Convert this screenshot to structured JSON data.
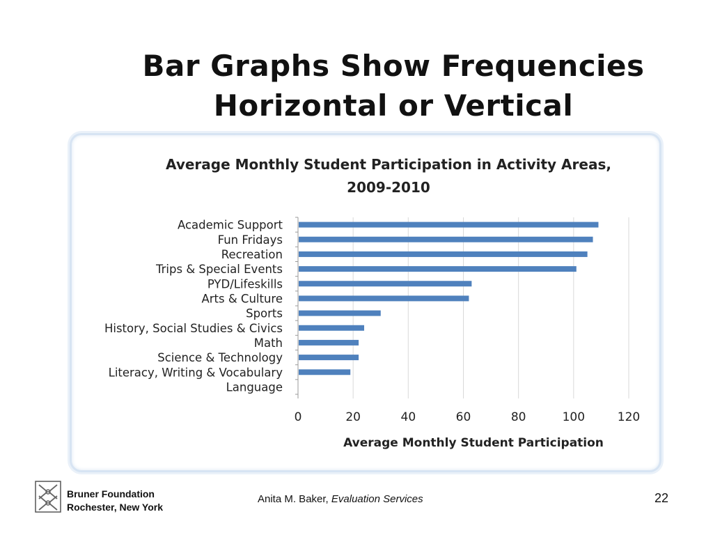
{
  "slide": {
    "title_line1": "Bar Graphs Show Frequencies",
    "title_line2": "Horizontal or Vertical",
    "footer_org_line1": "Bruner Foundation",
    "footer_org_line2": "Rochester, New York",
    "footer_author": "Anita M. Baker,",
    "footer_service": "Evaluation Services",
    "page_number": "22"
  },
  "chart_data": {
    "type": "bar",
    "orientation": "horizontal",
    "title": "Average Monthly Student Participation in Activity Areas, 2009-2010",
    "title_line1": "Average Monthly Student Participation in Activity Areas,",
    "title_line2": "2009-2010",
    "xlabel": "Average Monthly Student Participation",
    "ylabel": "",
    "xlim": [
      0,
      120
    ],
    "xticks": [
      0,
      20,
      40,
      60,
      80,
      100,
      120
    ],
    "grid": true,
    "bar_color": "#4f81bd",
    "categories": [
      "Academic Support",
      "Fun Fridays",
      "Recreation",
      "Trips & Special Events",
      "PYD/Lifeskills",
      "Arts & Culture",
      "Sports",
      "History, Social Studies & Civics",
      "Math",
      "Science & Technology",
      "Literacy, Writing & Vocabulary",
      "Language"
    ],
    "values": [
      109,
      107,
      105,
      101,
      63,
      62,
      30,
      24,
      22,
      22,
      19,
      0
    ]
  }
}
